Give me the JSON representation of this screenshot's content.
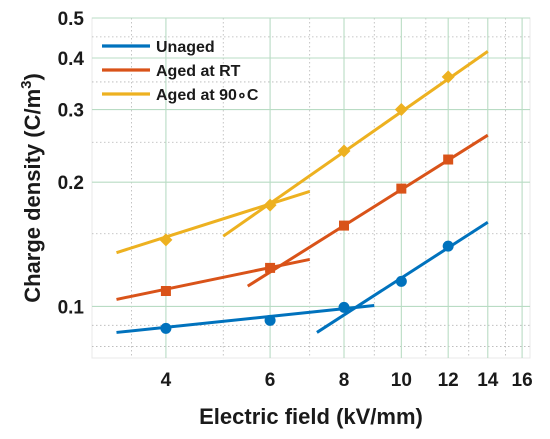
{
  "chart_data": {
    "type": "line",
    "title": "",
    "xlabel": "Electric field (kV/mm)",
    "ylabel": "Charge density (C/m",
    "ylabel_superscript": "3",
    "ylabel_suffix": ")",
    "x_scale": "log",
    "y_scale": "log",
    "xlim": [
      3,
      16.5
    ],
    "ylim": [
      0.075,
      0.5
    ],
    "x_ticks": [
      4,
      6,
      8,
      10,
      12,
      14,
      16
    ],
    "x_tick_labels": [
      "4",
      "6",
      "8",
      "10",
      "12",
      "14",
      "16"
    ],
    "y_ticks": [
      0.1,
      0.2,
      0.3,
      0.4,
      0.5
    ],
    "y_tick_labels": [
      "0.1",
      "0.2",
      "0.3",
      "0.4",
      "0.5"
    ],
    "grid": true,
    "legend_position": "top-left",
    "series": [
      {
        "name": "Unaged",
        "color": "#0072BD",
        "marker": "circle",
        "points": [
          [
            4,
            0.0885
          ],
          [
            6,
            0.0925
          ],
          [
            8,
            0.0995
          ],
          [
            10,
            0.115
          ],
          [
            12,
            0.14
          ]
        ],
        "fits": [
          [
            [
              3.3,
              0.0865
            ],
            [
              9,
              0.1005
            ]
          ],
          [
            [
              7.2,
              0.0865
            ],
            [
              14,
              0.16
            ]
          ]
        ]
      },
      {
        "name": "Aged at RT",
        "color": "#D95319",
        "marker": "square",
        "points": [
          [
            4,
            0.109
          ],
          [
            6,
            0.124
          ],
          [
            8,
            0.157
          ],
          [
            10,
            0.193
          ],
          [
            12,
            0.227
          ]
        ],
        "fits": [
          [
            [
              3.3,
              0.104
            ],
            [
              7,
              0.13
            ]
          ],
          [
            [
              5.5,
              0.112
            ],
            [
              14,
              0.26
            ]
          ]
        ]
      },
      {
        "name": "Aged at 90∘C",
        "color": "#EDB120",
        "marker": "diamond",
        "points": [
          [
            4,
            0.145
          ],
          [
            6,
            0.176
          ],
          [
            8,
            0.238
          ],
          [
            10,
            0.3
          ],
          [
            12,
            0.36
          ]
        ],
        "fits": [
          [
            [
              3.3,
              0.135
            ],
            [
              7,
              0.19
            ]
          ],
          [
            [
              5,
              0.148
            ],
            [
              14,
              0.415
            ]
          ]
        ]
      }
    ]
  }
}
